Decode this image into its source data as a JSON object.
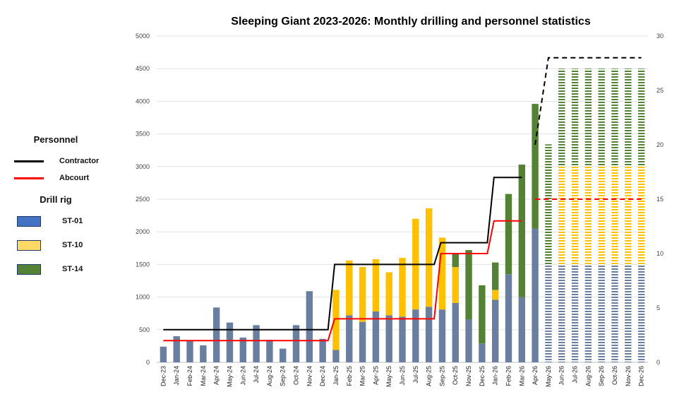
{
  "chart_data": {
    "type": "bar",
    "title": "Sleeping Giant 2023-2026: Monthly drilling and personnel statistics",
    "categories": [
      "Dec-23",
      "Jan-24",
      "Feb-24",
      "Mar-24",
      "Apr-24",
      "May-24",
      "Jun-24",
      "Jul-24",
      "Aug-24",
      "Sep-24",
      "Oct-24",
      "Nov-24",
      "Dec-24",
      "Jan-25",
      "Feb-25",
      "Mar-25",
      "Apr-25",
      "May-25",
      "Jun-25",
      "Jul-25",
      "Aug-25",
      "Sep-25",
      "Oct-25",
      "Nov-25",
      "Dec-25",
      "Jan-26",
      "Feb-26",
      "Mar-26",
      "Apr-26",
      "May-26",
      "Jun-26",
      "Jul-26",
      "Aug-26",
      "Sep-26",
      "Oct-26",
      "Nov-26",
      "Dec-26"
    ],
    "ylim": [
      0,
      5000
    ],
    "y_ticks": [
      0,
      500,
      1000,
      1500,
      2000,
      2500,
      3000,
      3500,
      4000,
      4500,
      5000
    ],
    "y2lim": [
      0,
      30
    ],
    "y2_ticks": [
      0,
      5,
      10,
      15,
      20,
      25,
      30
    ],
    "grid": true,
    "legend_position": "left",
    "forecast_from": "May-26",
    "series": [
      {
        "name": "ST-01",
        "color": "#6a7fa0",
        "legend_color": "#4472c4",
        "values": [
          240,
          400,
          330,
          260,
          840,
          610,
          380,
          570,
          345,
          210,
          570,
          1090,
          360,
          190,
          720,
          620,
          780,
          720,
          700,
          810,
          850,
          810,
          910,
          660,
          290,
          960,
          1350,
          1000,
          2050,
          1500,
          1500,
          1500,
          1500,
          1500,
          1500,
          1500,
          1500
        ]
      },
      {
        "name": "ST-10",
        "color": "#ffc000",
        "legend_color": "#ffd966",
        "values": [
          0,
          0,
          0,
          0,
          0,
          0,
          0,
          0,
          0,
          0,
          0,
          0,
          0,
          920,
          840,
          840,
          800,
          660,
          900,
          1390,
          1510,
          1100,
          550,
          0,
          0,
          150,
          0,
          0,
          0,
          0,
          1500,
          1500,
          1500,
          1500,
          1500,
          1500,
          1500
        ]
      },
      {
        "name": "ST-14",
        "color": "#548235",
        "legend_color": "#548235",
        "values": [
          0,
          0,
          0,
          0,
          0,
          0,
          0,
          0,
          0,
          0,
          0,
          0,
          0,
          0,
          0,
          0,
          0,
          0,
          0,
          0,
          0,
          0,
          200,
          1060,
          890,
          420,
          1230,
          2030,
          1910,
          1840,
          1500,
          1500,
          1500,
          1500,
          1500,
          1500,
          1500
        ]
      }
    ],
    "personnel": [
      {
        "name": "Contractor",
        "color": "#000000",
        "values": [
          3,
          3,
          3,
          3,
          3,
          3,
          3,
          3,
          3,
          3,
          3,
          3,
          3,
          9,
          9,
          9,
          9,
          9,
          9,
          9,
          9,
          11,
          11,
          11,
          11,
          17,
          17,
          17,
          20,
          28,
          28,
          28,
          28,
          28,
          28,
          28,
          28
        ]
      },
      {
        "name": "Abcourt",
        "color": "#ff0000",
        "values": [
          2,
          2,
          2,
          2,
          2,
          2,
          2,
          2,
          2,
          2,
          2,
          2,
          2,
          4,
          4,
          4,
          4,
          4,
          4,
          4,
          4,
          10,
          10,
          10,
          10,
          13,
          13,
          13,
          15,
          15,
          15,
          15,
          15,
          15,
          15,
          15,
          15
        ]
      }
    ]
  },
  "legend": {
    "personnel_title": "Personnel",
    "drill_rig_title": "Drill rig",
    "contractor": "Contractor",
    "abcourt": "Abcourt",
    "st01": "ST-01",
    "st10": "ST-10",
    "st14": "ST-14"
  }
}
